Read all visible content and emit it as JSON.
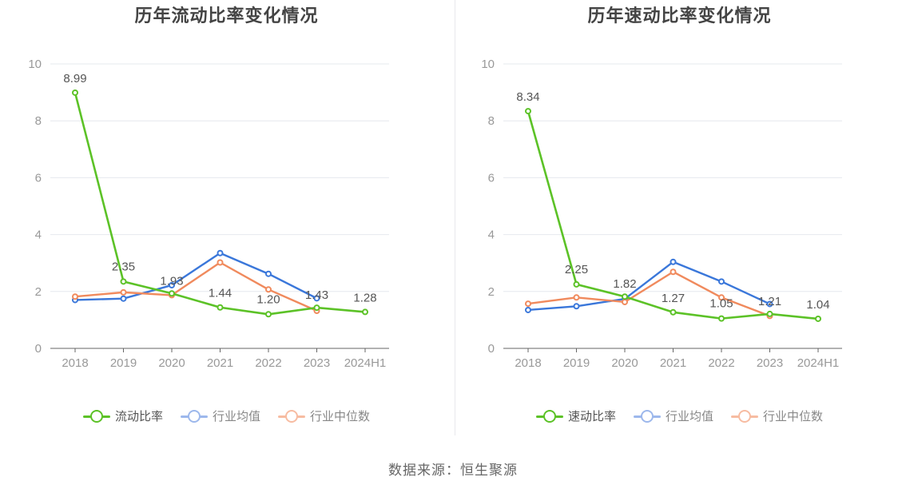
{
  "source": "数据来源：恒生聚源",
  "colors": {
    "company": "#5cc227",
    "industry_avg": "#3a77da",
    "industry_median": "#f08a5d",
    "axis": "#666666",
    "grid": "#e6e8ee",
    "tick_text": "#999999"
  },
  "chart_data": [
    {
      "type": "line",
      "title": "历年流动比率变化情况",
      "categories": [
        "2018",
        "2019",
        "2020",
        "2021",
        "2022",
        "2023",
        "2024H1"
      ],
      "ylim": [
        0,
        10
      ],
      "yticks": [
        "0",
        "2",
        "4",
        "6",
        "8",
        "10"
      ],
      "grid": true,
      "legend_position": "bottom",
      "series": [
        {
          "name": "流动比率",
          "role": "company",
          "values": [
            8.99,
            2.35,
            1.93,
            1.44,
            1.2,
            1.43,
            1.28
          ],
          "labels": [
            "8.99",
            "2.35",
            "1.93",
            "1.44",
            "1.20",
            "1.43",
            "1.28"
          ]
        },
        {
          "name": "行业均值",
          "role": "industry_avg",
          "values": [
            1.7,
            1.75,
            2.22,
            3.35,
            2.62,
            1.76,
            null
          ]
        },
        {
          "name": "行业中位数",
          "role": "industry_median",
          "values": [
            1.82,
            1.97,
            1.87,
            3.02,
            2.07,
            1.32,
            null
          ]
        }
      ]
    },
    {
      "type": "line",
      "title": "历年速动比率变化情况",
      "categories": [
        "2018",
        "2019",
        "2020",
        "2021",
        "2022",
        "2023",
        "2024H1"
      ],
      "ylim": [
        0,
        10
      ],
      "yticks": [
        "0",
        "2",
        "4",
        "6",
        "8",
        "10"
      ],
      "grid": true,
      "legend_position": "bottom",
      "series": [
        {
          "name": "速动比率",
          "role": "company",
          "values": [
            8.34,
            2.25,
            1.82,
            1.27,
            1.05,
            1.21,
            1.04
          ],
          "labels": [
            "8.34",
            "2.25",
            "1.82",
            "1.27",
            "1.05",
            "1.21",
            "1.04"
          ]
        },
        {
          "name": "行业均值",
          "role": "industry_avg",
          "values": [
            1.35,
            1.48,
            1.74,
            3.04,
            2.35,
            1.56,
            null
          ]
        },
        {
          "name": "行业中位数",
          "role": "industry_median",
          "values": [
            1.57,
            1.79,
            1.63,
            2.69,
            1.79,
            1.14,
            null
          ]
        }
      ]
    }
  ]
}
